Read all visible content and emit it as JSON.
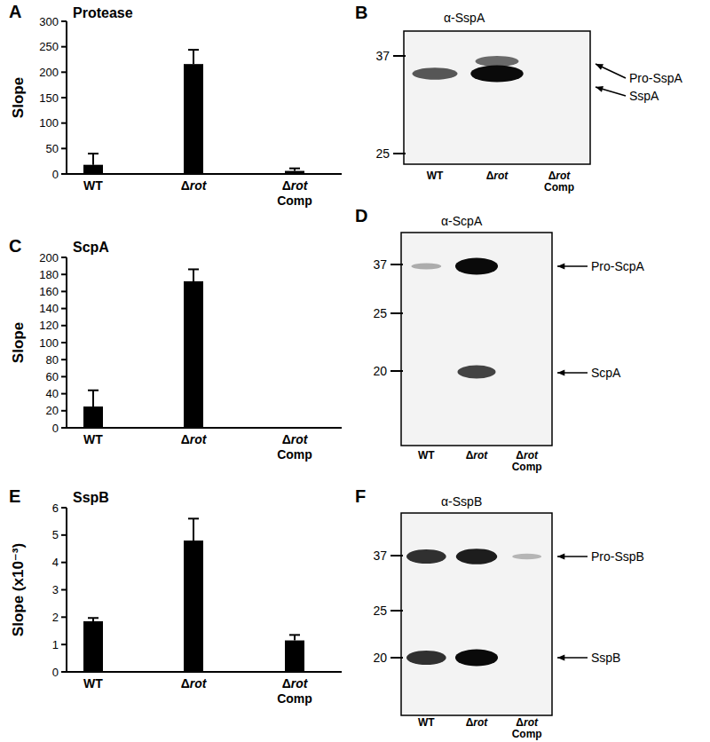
{
  "chart_data": [
    {
      "panel": "A",
      "type": "bar",
      "title": "Protease",
      "y_label": "Slope",
      "categories": [
        "WT",
        "Δrot",
        "Δrot Comp"
      ],
      "values": [
        18,
        216,
        6
      ],
      "errors": [
        22,
        28,
        5
      ],
      "color": "#000000",
      "ylim": [
        0,
        300
      ],
      "yticks": [
        0,
        50,
        100,
        150,
        200,
        250,
        300
      ]
    },
    {
      "panel": "C",
      "type": "bar",
      "title": "ScpA",
      "y_label": "Slope",
      "categories": [
        "WT",
        "Δrot",
        "Δrot Comp"
      ],
      "values": [
        25,
        172,
        0
      ],
      "errors": [
        19,
        14,
        0
      ],
      "color": "#000000",
      "ylim": [
        0,
        200
      ],
      "yticks": [
        0,
        20,
        40,
        60,
        80,
        100,
        120,
        140,
        160,
        180,
        200
      ]
    },
    {
      "panel": "E",
      "type": "bar",
      "title": "SspB",
      "y_label": "Slope (x10⁻³)",
      "categories": [
        "WT",
        "Δrot",
        "Δrot Comp"
      ],
      "values": [
        1.85,
        4.8,
        1.15
      ],
      "errors": [
        0.12,
        0.8,
        0.2
      ],
      "color": "#000000",
      "ylim": [
        0,
        6
      ],
      "yticks": [
        0,
        1,
        2,
        3,
        4,
        5,
        6
      ]
    }
  ],
  "blots": [
    {
      "panel": "B",
      "antibody": "α-SspA",
      "lanes": [
        "WT",
        "Δrot",
        "Δrot Comp"
      ],
      "markers": [
        37,
        25
      ],
      "targets": [
        "Pro-SspA",
        "SspA"
      ],
      "bands": [
        {
          "lane": 0,
          "target": 1,
          "intensity": 0.6
        },
        {
          "lane": 1,
          "target": 0,
          "intensity": 0.5
        },
        {
          "lane": 1,
          "target": 1,
          "intensity": 1.0
        }
      ]
    },
    {
      "panel": "D",
      "antibody": "α-ScpA",
      "lanes": [
        "WT",
        "Δrot",
        "Δrot Comp"
      ],
      "markers": [
        37,
        25,
        20
      ],
      "targets": [
        "Pro-ScpA",
        "ScpA"
      ],
      "bands": [
        {
          "lane": 0,
          "target": 0,
          "intensity": 0.15
        },
        {
          "lane": 1,
          "target": 0,
          "intensity": 1.0
        },
        {
          "lane": 1,
          "target": 1,
          "intensity": 0.7
        }
      ]
    },
    {
      "panel": "F",
      "antibody": "α-SspB",
      "lanes": [
        "WT",
        "Δrot",
        "Δrot Comp"
      ],
      "markers": [
        37,
        25,
        20
      ],
      "targets": [
        "Pro-SspB",
        "SspB"
      ],
      "bands": [
        {
          "lane": 0,
          "target": 0,
          "intensity": 0.8
        },
        {
          "lane": 0,
          "target": 1,
          "intensity": 0.8
        },
        {
          "lane": 1,
          "target": 0,
          "intensity": 0.9
        },
        {
          "lane": 1,
          "target": 1,
          "intensity": 1.0
        },
        {
          "lane": 2,
          "target": 0,
          "intensity": 0.1
        }
      ]
    }
  ]
}
